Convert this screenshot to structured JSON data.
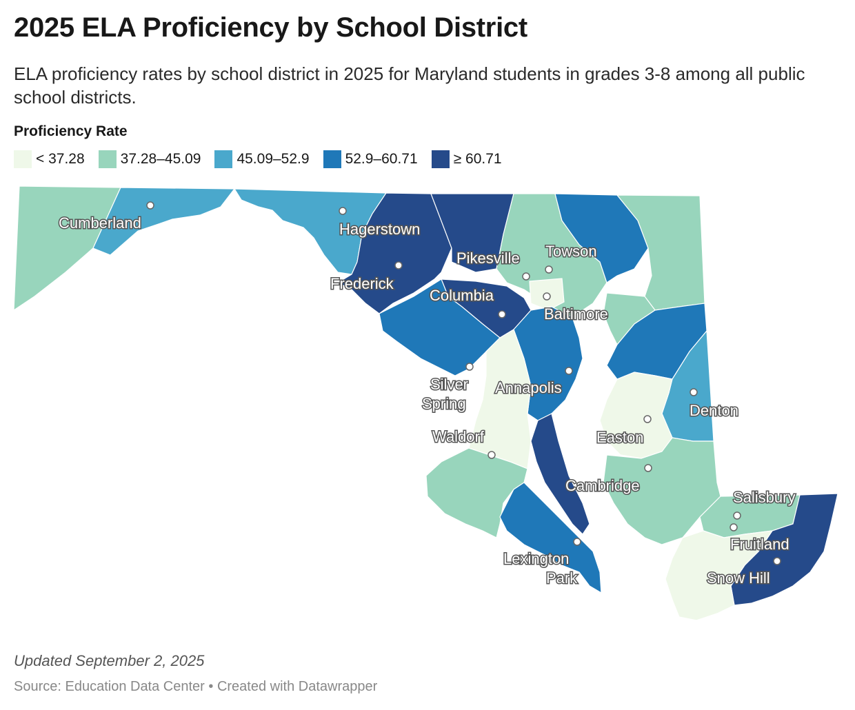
{
  "title": "2025 ELA Proficiency by School District",
  "subtitle": "ELA proficiency rates by school district in 2025 for Maryland students in grades 3-8 among all public school districts.",
  "legend": {
    "title": "Proficiency Rate",
    "items": [
      {
        "label": "< 37.28",
        "color": "#eff8e9"
      },
      {
        "label": "37.28–45.09",
        "color": "#98d5bc"
      },
      {
        "label": "45.09–52.9",
        "color": "#4aa8cc"
      },
      {
        "label": "52.9–60.71",
        "color": "#1f78b8"
      },
      {
        "label": "≥ 60.71",
        "color": "#254a8a"
      }
    ]
  },
  "cities": {
    "cumberland": "Cumberland",
    "hagerstown": "Hagerstown",
    "frederick": "Frederick",
    "pikesville": "Pikesville",
    "towson": "Towson",
    "columbia": "Columbia",
    "baltimore": "Baltimore",
    "silver_spring_1": "Silver",
    "silver_spring_2": "Spring",
    "annapolis": "Annapolis",
    "denton": "Denton",
    "easton": "Easton",
    "waldorf": "Waldorf",
    "cambridge": "Cambridge",
    "salisbury": "Salisbury",
    "fruitland": "Fruitland",
    "lexington_park_1": "Lexington",
    "lexington_park_2": "Park",
    "snow_hill": "Snow Hill"
  },
  "footer": {
    "updated": "Updated September 2, 2025",
    "source": "Source: Education Data Center • Created with Datawrapper"
  }
}
